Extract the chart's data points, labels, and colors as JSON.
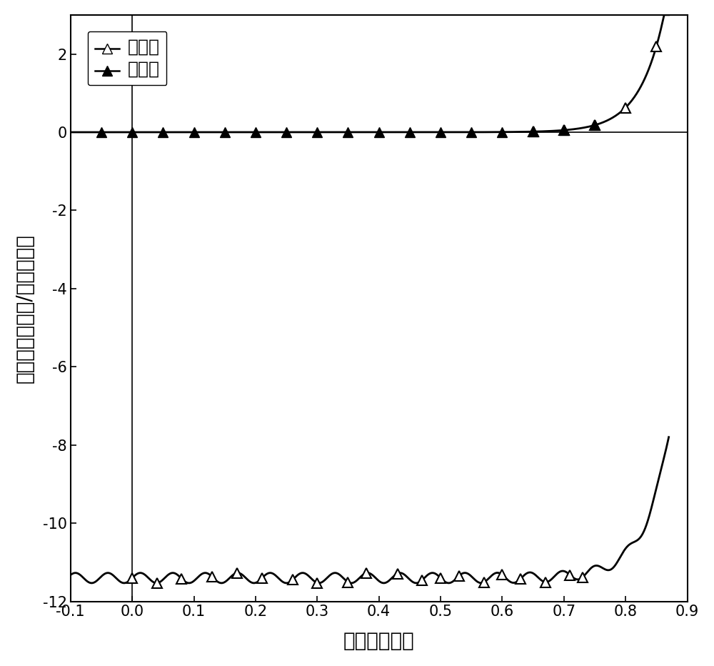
{
  "title": "",
  "xlabel": "电压（伏特）",
  "ylabel": "电流密度（毫安/平方厘米）",
  "xlim": [
    -0.1,
    0.9
  ],
  "ylim": [
    -12,
    3
  ],
  "xticks": [
    -0.1,
    0.0,
    0.1,
    0.2,
    0.3,
    0.4,
    0.5,
    0.6,
    0.7,
    0.8,
    0.9
  ],
  "yticks": [
    -12,
    -10,
    -8,
    -6,
    -4,
    -2,
    0,
    2
  ],
  "legend_dark": "暗电流",
  "legend_photo": "光电流",
  "background_color": "#ffffff",
  "line_color": "#000000",
  "figsize": [
    10.0,
    9.32
  ],
  "dpi": 100,
  "Jsc": 11.4,
  "V_th": 0.04,
  "J0": 1e-08,
  "noise_amp": 0.13,
  "noise_freq": 38
}
